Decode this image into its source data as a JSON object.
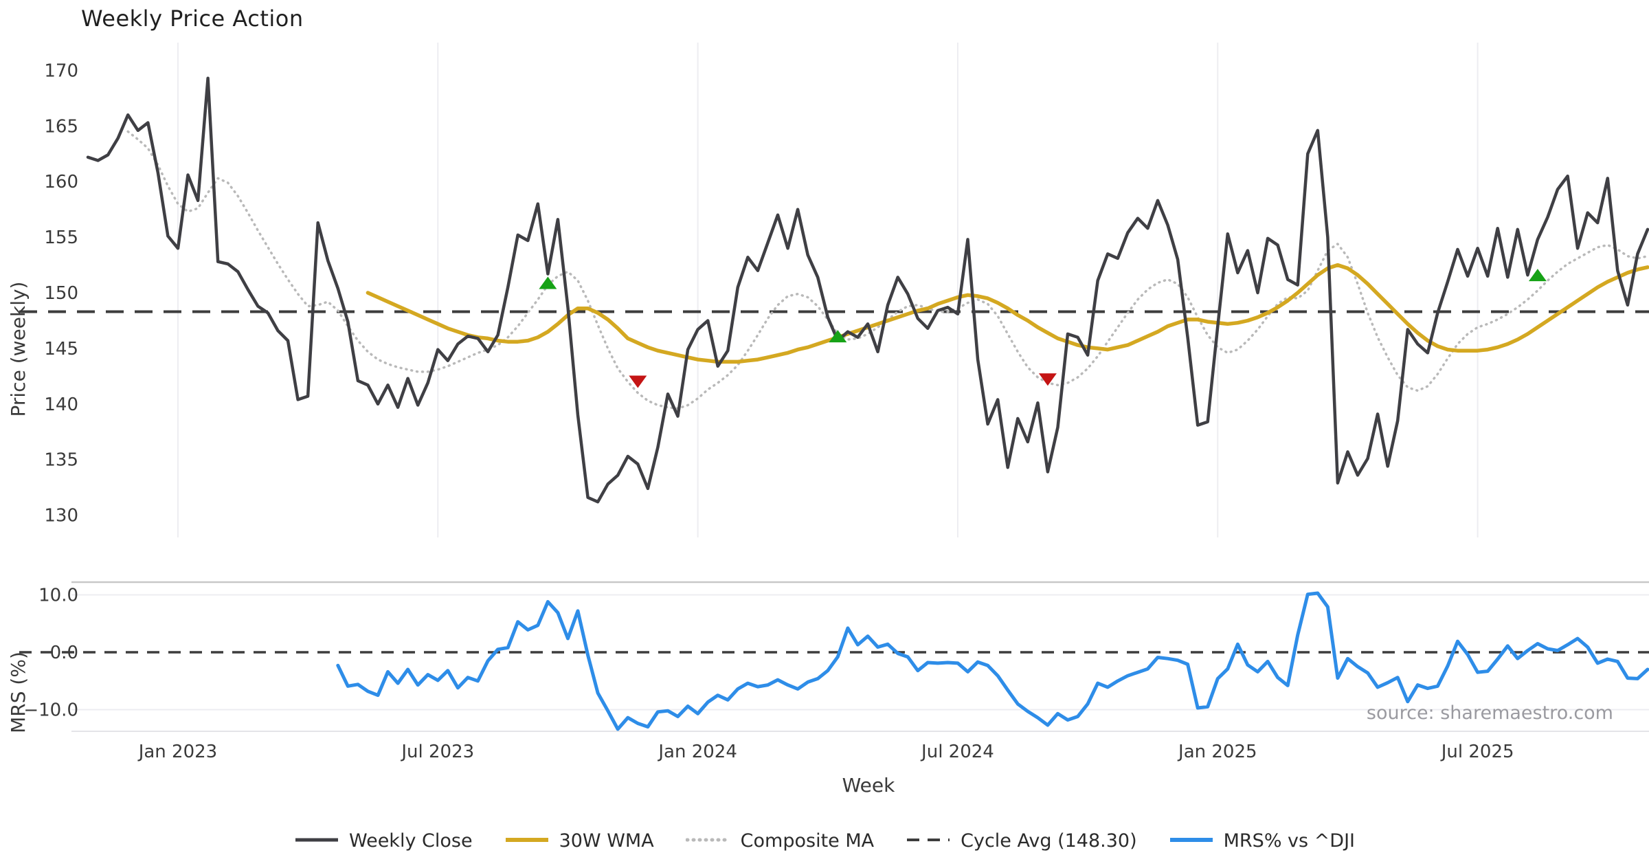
{
  "title": "Weekly Price Action",
  "source_note": "source: sharemaestro.com",
  "colors": {
    "close": "#3f3f44",
    "wma": "#d4a821",
    "composite": "#b9b9b9",
    "cycle_avg": "#3d3d3d",
    "mrs": "#2e8de8",
    "buy_marker": "#16a216",
    "sell_marker": "#c41414",
    "gridline": "#ededf1",
    "spine": "#c8c8c8",
    "tick_text": "#3a3a3a",
    "title_text": "#1f1f1f",
    "source_text": "#9a9aa0"
  },
  "legend": {
    "items": [
      {
        "label": "Weekly Close",
        "style": "solid",
        "color": "#3f3f44",
        "width": 5
      },
      {
        "label": "30W WMA",
        "style": "solid",
        "color": "#d4a821",
        "width": 6
      },
      {
        "label": "Composite MA",
        "style": "dotted",
        "color": "#b9b9b9",
        "width": 5
      },
      {
        "label": "Cycle Avg (148.30)",
        "style": "dashed",
        "color": "#3d3d3d",
        "width": 4
      },
      {
        "label": "MRS% vs ^DJI",
        "style": "solid",
        "color": "#2e8de8",
        "width": 6
      }
    ]
  },
  "chart_data": [
    {
      "type": "line",
      "title": "Weekly Price Action",
      "xlabel": "Week",
      "ylabel": "Price (weekly)",
      "ylim": [
        128,
        172.5
      ],
      "yticks": [
        130,
        135,
        140,
        145,
        150,
        155,
        160,
        165,
        170
      ],
      "n_weeks": 157,
      "xticks": [
        {
          "week": 9,
          "label": "Jan 2023"
        },
        {
          "week": 35,
          "label": "Jul 2023"
        },
        {
          "week": 61,
          "label": "Jan 2024"
        },
        {
          "week": 87,
          "label": "Jul 2024"
        },
        {
          "week": 113,
          "label": "Jan 2025"
        },
        {
          "week": 139,
          "label": "Jul 2025"
        }
      ],
      "cycle_avg": 148.3,
      "series": [
        {
          "name": "Weekly Close",
          "color": "#3f3f44",
          "width": 4.5,
          "dash": "",
          "start_week": 0,
          "values": [
            162.2,
            161.9,
            162.4,
            163.9,
            166.0,
            164.6,
            165.3,
            160.8,
            155.1,
            154.0,
            160.6,
            158.3,
            169.3,
            152.8,
            152.6,
            151.9,
            150.3,
            148.8,
            148.2,
            146.6,
            145.7,
            140.4,
            140.7,
            156.3,
            152.9,
            150.4,
            147.4,
            142.1,
            141.7,
            140.0,
            141.7,
            139.7,
            142.3,
            139.9,
            141.9,
            144.9,
            143.9,
            145.4,
            146.1,
            145.9,
            144.7,
            146.2,
            150.5,
            155.2,
            154.7,
            158.0,
            151.7,
            156.6,
            148.7,
            139.0,
            131.6,
            131.2,
            132.8,
            133.6,
            135.3,
            134.6,
            132.4,
            136.1,
            140.9,
            138.9,
            144.9,
            146.7,
            147.5,
            143.4,
            144.8,
            150.5,
            153.2,
            152.0,
            154.5,
            157.0,
            154.0,
            157.5,
            153.4,
            151.4,
            147.8,
            145.7,
            146.5,
            146.0,
            147.2,
            144.7,
            148.9,
            151.4,
            149.9,
            147.7,
            146.8,
            148.4,
            148.7,
            148.1,
            154.8,
            144.0,
            138.2,
            140.4,
            134.3,
            138.7,
            136.6,
            140.1,
            133.9,
            137.9,
            146.3,
            146.0,
            144.4,
            151.1,
            153.5,
            153.1,
            155.4,
            156.7,
            155.8,
            158.3,
            156.1,
            153.0,
            146.0,
            138.1,
            138.4,
            147.0,
            155.3,
            151.8,
            153.8,
            150.0,
            154.9,
            154.3,
            151.2,
            150.7,
            162.5,
            164.6,
            155.0,
            132.9,
            135.7,
            133.6,
            135.1,
            139.1,
            134.4,
            138.5,
            146.7,
            145.4,
            144.6,
            148.2,
            151.0,
            153.9,
            151.5,
            154.0,
            151.5,
            155.8,
            151.4,
            155.7,
            151.6,
            154.8,
            156.8,
            159.3,
            160.5,
            154.0,
            157.2,
            156.3,
            160.3,
            152.0,
            148.9,
            153.5,
            155.7
          ]
        },
        {
          "name": "30W WMA",
          "color": "#d4a821",
          "width": 5.5,
          "dash": "",
          "start_week": 28,
          "values": [
            150.0,
            149.6,
            149.2,
            148.8,
            148.4,
            148.0,
            147.6,
            147.2,
            146.8,
            146.5,
            146.2,
            146.0,
            145.9,
            145.7,
            145.6,
            145.6,
            145.7,
            146.0,
            146.5,
            147.2,
            148.0,
            148.6,
            148.6,
            148.2,
            147.6,
            146.8,
            145.9,
            145.5,
            145.1,
            144.8,
            144.6,
            144.4,
            144.2,
            144.0,
            143.9,
            143.8,
            143.8,
            143.8,
            143.9,
            144.0,
            144.2,
            144.4,
            144.6,
            144.9,
            145.1,
            145.4,
            145.7,
            146.0,
            146.3,
            146.6,
            146.9,
            147.2,
            147.5,
            147.8,
            148.1,
            148.4,
            148.6,
            149.0,
            149.3,
            149.6,
            149.8,
            149.7,
            149.5,
            149.1,
            148.6,
            148.0,
            147.5,
            146.9,
            146.4,
            145.9,
            145.6,
            145.3,
            145.1,
            145.0,
            144.9,
            145.1,
            145.3,
            145.7,
            146.1,
            146.5,
            147.0,
            147.3,
            147.6,
            147.6,
            147.4,
            147.3,
            147.2,
            147.3,
            147.5,
            147.8,
            148.2,
            148.7,
            149.3,
            150.0,
            150.8,
            151.6,
            152.2,
            152.5,
            152.2,
            151.6,
            150.8,
            149.9,
            149.0,
            148.1,
            147.2,
            146.4,
            145.7,
            145.2,
            144.9,
            144.8,
            144.8,
            144.8,
            144.9,
            145.1,
            145.4,
            145.8,
            146.3,
            146.9,
            147.5,
            148.1,
            148.7,
            149.3,
            149.9,
            150.5,
            151.0,
            151.4,
            151.8,
            152.1,
            152.3
          ]
        },
        {
          "name": "Composite MA",
          "color": "#b9b9b9",
          "width": 3.5,
          "dash": "1 7",
          "start_week": 4,
          "values": [
            164.5,
            163.8,
            163.0,
            161.5,
            159.6,
            158.0,
            157.3,
            157.6,
            159.0,
            160.3,
            159.9,
            158.7,
            157.2,
            155.6,
            154.1,
            152.6,
            151.2,
            149.9,
            148.8,
            148.9,
            149.2,
            148.4,
            147.0,
            145.7,
            144.7,
            144.0,
            143.6,
            143.3,
            143.1,
            142.9,
            142.9,
            143.1,
            143.4,
            143.8,
            144.2,
            144.6,
            144.9,
            145.3,
            146.0,
            147.0,
            148.2,
            149.4,
            150.7,
            151.5,
            151.9,
            151.1,
            149.3,
            147.1,
            145.0,
            143.2,
            142.0,
            141.0,
            140.3,
            139.9,
            139.7,
            139.6,
            139.9,
            140.5,
            141.3,
            141.9,
            142.6,
            143.5,
            144.8,
            146.2,
            147.7,
            148.9,
            149.7,
            149.9,
            149.6,
            148.8,
            147.6,
            146.3,
            145.8,
            145.9,
            146.3,
            146.9,
            147.6,
            148.3,
            148.8,
            148.9,
            148.6,
            148.3,
            148.3,
            148.6,
            149.1,
            149.4,
            149.0,
            147.9,
            146.3,
            144.7,
            143.3,
            142.4,
            141.9,
            141.7,
            141.9,
            142.4,
            143.2,
            144.3,
            145.6,
            146.9,
            148.2,
            149.4,
            150.3,
            150.9,
            151.2,
            150.8,
            149.6,
            147.8,
            146.2,
            145.1,
            144.6,
            144.9,
            145.7,
            146.7,
            147.9,
            149.0,
            149.6,
            149.5,
            150.2,
            152.0,
            153.8,
            154.4,
            153.2,
            150.8,
            148.2,
            146.0,
            144.2,
            142.6,
            141.5,
            141.2,
            141.6,
            142.7,
            144.1,
            145.4,
            146.3,
            146.9,
            147.2,
            147.6,
            148.1,
            148.7,
            149.4,
            150.2,
            151.1,
            151.9,
            152.6,
            153.1,
            153.6,
            154.1,
            154.3,
            153.9,
            153.3,
            153.1,
            153.3
          ]
        }
      ],
      "markers": {
        "buy": {
          "color": "#16a216",
          "points": [
            {
              "week": 46,
              "price": 150.9
            },
            {
              "week": 75,
              "price": 146.1
            },
            {
              "week": 145,
              "price": 151.6
            }
          ]
        },
        "sell": {
          "color": "#c41414",
          "points": [
            {
              "week": 55,
              "price": 142.0
            },
            {
              "week": 96,
              "price": 142.2
            }
          ]
        }
      }
    },
    {
      "type": "line",
      "ylabel": "MRS (%)",
      "ylim": [
        -14,
        12.3
      ],
      "yticks": [
        {
          "v": 10,
          "label": "10.0"
        },
        {
          "v": 0,
          "label": "0.0"
        },
        {
          "v": -10,
          "label": "−10.0"
        }
      ],
      "zero_line_dashed": true,
      "series": [
        {
          "name": "MRS% vs ^DJI",
          "color": "#2e8de8",
          "width": 5,
          "dash": "",
          "start_week": 25,
          "values": [
            -2.3,
            -5.9,
            -5.6,
            -6.8,
            -7.5,
            -3.4,
            -5.4,
            -3.0,
            -5.7,
            -3.9,
            -4.9,
            -3.2,
            -6.2,
            -4.4,
            -5.0,
            -1.5,
            0.5,
            0.8,
            5.3,
            3.9,
            4.7,
            8.8,
            6.9,
            2.4,
            7.2,
            -0.5,
            -7.1,
            -10.2,
            -13.4,
            -11.4,
            -12.4,
            -13.0,
            -10.4,
            -10.2,
            -11.2,
            -9.4,
            -10.7,
            -8.7,
            -7.5,
            -8.3,
            -6.4,
            -5.4,
            -6.0,
            -5.7,
            -4.8,
            -5.7,
            -6.4,
            -5.2,
            -4.6,
            -3.2,
            -0.8,
            4.2,
            1.3,
            2.8,
            0.9,
            1.4,
            -0.2,
            -0.8,
            -3.2,
            -1.8,
            -1.9,
            -1.8,
            -1.9,
            -3.4,
            -1.7,
            -2.3,
            -4.1,
            -6.6,
            -9.0,
            -10.3,
            -11.4,
            -12.7,
            -10.7,
            -11.8,
            -11.2,
            -9.0,
            -5.4,
            -6.1,
            -5.0,
            -4.1,
            -3.5,
            -2.9,
            -0.9,
            -1.1,
            -1.4,
            -2.1,
            -9.7,
            -9.5,
            -4.6,
            -2.9,
            1.4,
            -2.2,
            -3.4,
            -1.6,
            -4.4,
            -5.8,
            3.0,
            10.1,
            10.3,
            7.9,
            -4.5,
            -1.1,
            -2.5,
            -3.6,
            -6.1,
            -5.3,
            -4.4,
            -8.6,
            -5.7,
            -6.3,
            -5.9,
            -2.4,
            1.9,
            -0.4,
            -3.5,
            -3.3,
            -1.2,
            1.1,
            -1.1,
            0.3,
            1.5,
            0.6,
            0.3,
            1.3,
            2.4,
            0.9,
            -1.9,
            -1.2,
            -1.6,
            -4.5,
            -4.6,
            -3.0
          ]
        }
      ]
    }
  ]
}
